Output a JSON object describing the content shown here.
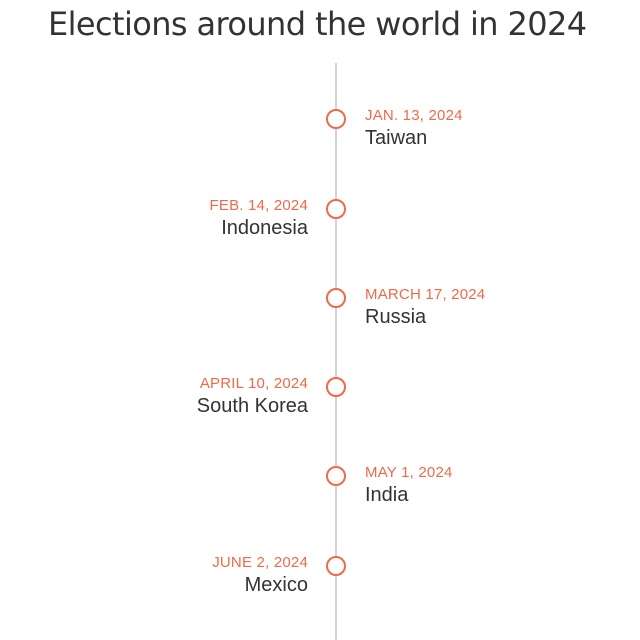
{
  "title": "Elections around the world in 2024",
  "colors": {
    "accent": "#ee6a48",
    "text": "#333333",
    "axis": "#d4d4d4"
  },
  "events": [
    {
      "date": "JAN. 13, 2024",
      "country": "Taiwan",
      "side": "right"
    },
    {
      "date": "FEB. 14, 2024",
      "country": "Indonesia",
      "side": "left"
    },
    {
      "date": "MARCH 17, 2024",
      "country": "Russia",
      "side": "right"
    },
    {
      "date": "APRIL 10, 2024",
      "country": "South Korea",
      "side": "left"
    },
    {
      "date": "MAY 1, 2024",
      "country": "India",
      "side": "right"
    },
    {
      "date": "JUNE 2, 2024",
      "country": "Mexico",
      "side": "left"
    }
  ]
}
